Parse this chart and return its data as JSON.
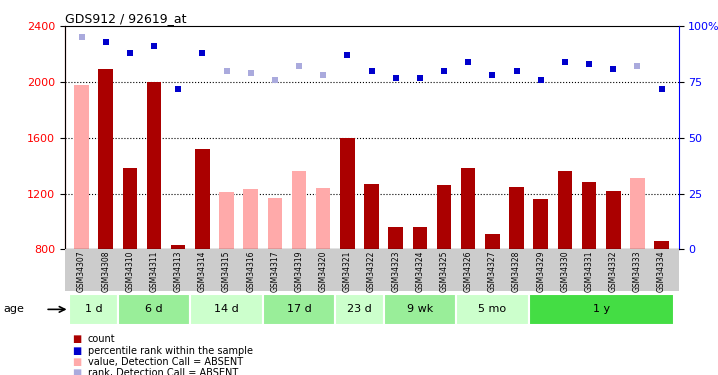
{
  "title": "GDS912 / 92619_at",
  "samples": [
    "GSM34307",
    "GSM34308",
    "GSM34310",
    "GSM34311",
    "GSM34313",
    "GSM34314",
    "GSM34315",
    "GSM34316",
    "GSM34317",
    "GSM34319",
    "GSM34320",
    "GSM34321",
    "GSM34322",
    "GSM34323",
    "GSM34324",
    "GSM34325",
    "GSM34326",
    "GSM34327",
    "GSM34328",
    "GSM34329",
    "GSM34330",
    "GSM34331",
    "GSM34332",
    "GSM34333",
    "GSM34334"
  ],
  "count_values": [
    null,
    2090,
    1380,
    2000,
    830,
    1520,
    null,
    null,
    null,
    null,
    null,
    1600,
    1270,
    960,
    960,
    1260,
    1380,
    910,
    1250,
    1160,
    1360,
    1280,
    1220,
    null,
    860
  ],
  "absent_values": [
    1980,
    null,
    null,
    null,
    null,
    null,
    1210,
    1230,
    1170,
    1360,
    1240,
    null,
    null,
    null,
    null,
    null,
    null,
    null,
    null,
    null,
    null,
    null,
    null,
    1310,
    null
  ],
  "percentile_rank": [
    null,
    93,
    88,
    91,
    72,
    88,
    null,
    null,
    null,
    null,
    null,
    87,
    80,
    77,
    77,
    80,
    84,
    78,
    80,
    76,
    84,
    83,
    81,
    null,
    72
  ],
  "absent_rank": [
    95,
    null,
    null,
    null,
    null,
    null,
    80,
    79,
    76,
    82,
    78,
    null,
    null,
    null,
    null,
    null,
    null,
    null,
    null,
    null,
    null,
    null,
    null,
    82,
    null
  ],
  "age_groups": [
    {
      "label": "1 d",
      "start": 0,
      "end": 2,
      "color": "#ccffcc"
    },
    {
      "label": "6 d",
      "start": 2,
      "end": 5,
      "color": "#99ee99"
    },
    {
      "label": "14 d",
      "start": 5,
      "end": 8,
      "color": "#ccffcc"
    },
    {
      "label": "17 d",
      "start": 8,
      "end": 11,
      "color": "#99ee99"
    },
    {
      "label": "23 d",
      "start": 11,
      "end": 13,
      "color": "#ccffcc"
    },
    {
      "label": "9 wk",
      "start": 13,
      "end": 16,
      "color": "#99ee99"
    },
    {
      "label": "5 mo",
      "start": 16,
      "end": 19,
      "color": "#ccffcc"
    },
    {
      "label": "1 y",
      "start": 19,
      "end": 25,
      "color": "#44dd44"
    }
  ],
  "ylim_left": [
    800,
    2400
  ],
  "ylim_right": [
    0,
    100
  ],
  "yticks_left": [
    800,
    1200,
    1600,
    2000,
    2400
  ],
  "yticks_right": [
    0,
    25,
    50,
    75,
    100
  ],
  "grid_lines": [
    1200,
    1600,
    2000
  ],
  "bar_color_dark": "#aa0000",
  "bar_color_absent": "#ffaaaa",
  "dot_color_present": "#0000cc",
  "dot_color_absent": "#aaaadd",
  "bar_width": 0.6,
  "sample_bg_color": "#cccccc"
}
